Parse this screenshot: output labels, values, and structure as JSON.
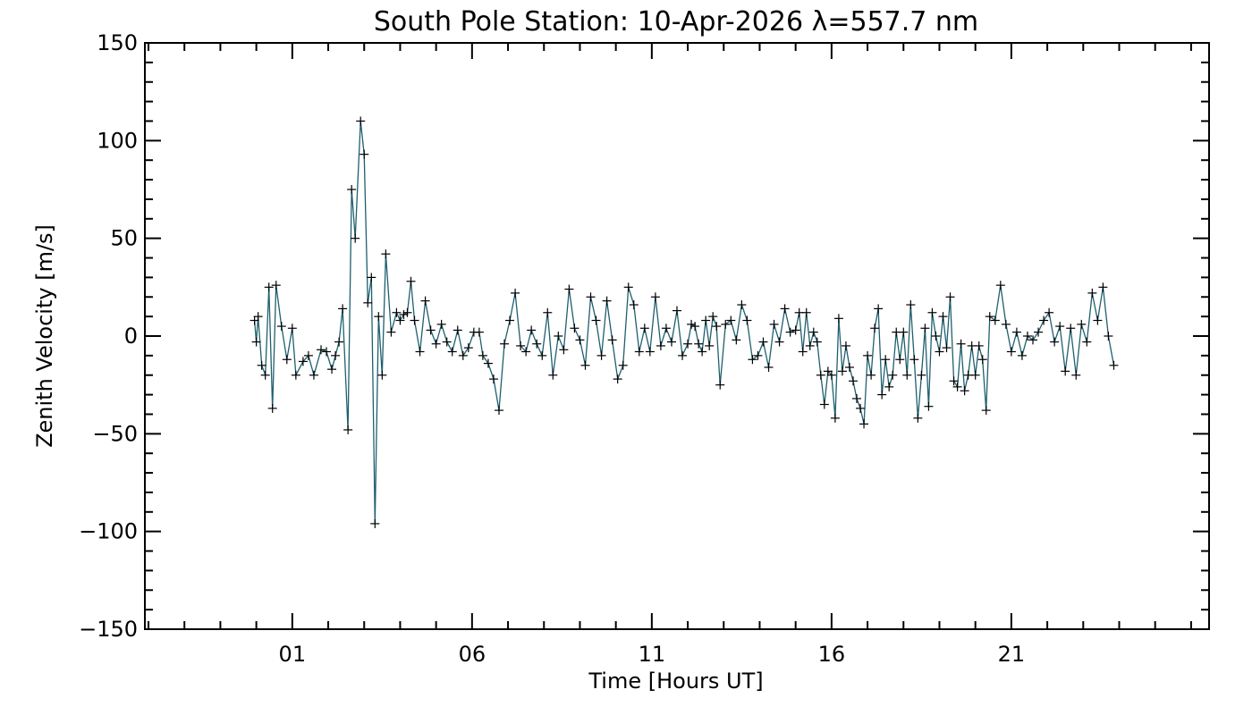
{
  "chart_data": {
    "type": "line",
    "title": "South Pole Station: 10-Apr-2026 λ=557.7 nm",
    "xlabel": "Time [Hours UT]",
    "ylabel": "Zenith Velocity [m/s]",
    "xlim": [
      -3.1,
      26.5
    ],
    "ylim": [
      -150,
      150
    ],
    "x_ticks": [
      1,
      6,
      11,
      16,
      21
    ],
    "x_tick_labels": [
      "01",
      "06",
      "11",
      "16",
      "21"
    ],
    "y_ticks": [
      -150,
      -100,
      -50,
      0,
      50,
      100,
      150
    ],
    "y_tick_labels": [
      "−150",
      "−100",
      "−50",
      "0",
      "50",
      "100",
      "150"
    ],
    "grid": false,
    "line_color": "#1f5f6f",
    "error_color": "#2222cc",
    "marker_color": "#000000",
    "series": [
      {
        "marker": "plus",
        "x": [
          -0.05,
          0.0,
          0.05,
          0.15,
          0.25,
          0.35,
          0.45,
          0.55,
          0.7,
          0.85,
          1.0,
          1.1,
          1.3,
          1.45,
          1.6,
          1.8,
          1.95,
          2.1,
          2.2,
          2.3,
          2.4,
          2.55,
          2.65,
          2.75,
          2.9,
          3.0,
          3.1,
          3.2,
          3.3,
          3.4,
          3.5,
          3.6,
          3.75,
          3.9,
          4.0,
          4.1,
          4.2,
          4.3,
          4.4,
          4.55,
          4.7,
          4.85,
          5.0,
          5.15,
          5.3,
          5.45,
          5.6,
          5.75,
          5.9,
          6.05,
          6.2,
          6.3,
          6.45,
          6.6,
          6.75,
          6.9,
          7.05,
          7.2,
          7.35,
          7.5,
          7.65,
          7.8,
          7.95,
          8.1,
          8.25,
          8.4,
          8.55,
          8.7,
          8.85,
          9.0,
          9.15,
          9.3,
          9.45,
          9.6,
          9.75,
          9.9,
          10.05,
          10.2,
          10.35,
          10.5,
          10.65,
          10.8,
          10.95,
          11.1,
          11.25,
          11.4,
          11.55,
          11.7,
          11.85,
          12.0,
          12.1,
          12.2,
          12.3,
          12.4,
          12.5,
          12.6,
          12.7,
          12.8,
          12.9,
          13.05,
          13.2,
          13.35,
          13.5,
          13.65,
          13.8,
          13.95,
          14.1,
          14.25,
          14.4,
          14.55,
          14.7,
          14.85,
          15.0,
          15.1,
          15.2,
          15.3,
          15.4,
          15.5,
          15.6,
          15.7,
          15.8,
          15.9,
          16.0,
          16.1,
          16.2,
          16.3,
          16.4,
          16.5,
          16.6,
          16.7,
          16.8,
          16.9,
          17.0,
          17.1,
          17.2,
          17.3,
          17.4,
          17.5,
          17.6,
          17.7,
          17.8,
          17.9,
          18.0,
          18.1,
          18.2,
          18.3,
          18.4,
          18.5,
          18.6,
          18.7,
          18.8,
          18.9,
          19.0,
          19.1,
          19.2,
          19.3,
          19.4,
          19.5,
          19.6,
          19.7,
          19.8,
          19.9,
          20.0,
          20.1,
          20.2,
          20.3,
          20.4,
          20.55,
          20.7,
          20.85,
          21.0,
          21.15,
          21.3,
          21.45,
          21.6,
          21.75,
          21.9,
          22.05,
          22.2,
          22.35,
          22.5,
          22.65,
          22.8,
          22.95,
          23.1,
          23.25,
          23.4,
          23.55,
          23.7,
          23.85
        ],
        "y": [
          8,
          -3,
          10,
          -15,
          -20,
          25,
          -37,
          26,
          5,
          -12,
          4,
          -20,
          -13,
          -10,
          -20,
          -7,
          -8,
          -17,
          -10,
          -3,
          14,
          -48,
          75,
          50,
          110,
          93,
          17,
          30,
          -96,
          10,
          -20,
          42,
          2,
          12,
          8,
          11,
          12,
          28,
          8,
          -8,
          18,
          3,
          -4,
          6,
          -3,
          -8,
          3,
          -10,
          -6,
          2,
          2,
          -10,
          -14,
          -22,
          -38,
          -4,
          8,
          22,
          -5,
          -8,
          3,
          -4,
          -10,
          12,
          -20,
          0,
          -7,
          24,
          4,
          -2,
          -15,
          20,
          8,
          -10,
          18,
          -2,
          -22,
          -15,
          25,
          16,
          -8,
          4,
          -8,
          20,
          -5,
          4,
          -3,
          13,
          -10,
          -4,
          6,
          5,
          -4,
          -8,
          8,
          -5,
          10,
          5,
          -25,
          6,
          8,
          -2,
          16,
          8,
          -12,
          -10,
          -3,
          -16,
          6,
          -3,
          14,
          2,
          3,
          12,
          -8,
          12,
          -5,
          2,
          -3,
          -20,
          -35,
          -18,
          -20,
          -42,
          9,
          -18,
          -5,
          -16,
          -23,
          -32,
          -37,
          -45,
          -10,
          -20,
          4,
          14,
          -30,
          -12,
          -26,
          -20,
          2,
          -12,
          2,
          -20,
          16,
          -12,
          -42,
          -20,
          4,
          -36,
          12,
          0,
          -8,
          10,
          -6,
          20,
          -23,
          -26,
          -4,
          -28,
          -20,
          -5,
          -20,
          -5,
          -12,
          -38,
          10,
          8,
          26,
          6,
          -8,
          2,
          -10,
          0,
          -2,
          2,
          8,
          12,
          -3,
          5,
          -18,
          4,
          -20,
          6,
          -3,
          22,
          8,
          25,
          0,
          -15
        ],
        "errors": []
      }
    ]
  }
}
